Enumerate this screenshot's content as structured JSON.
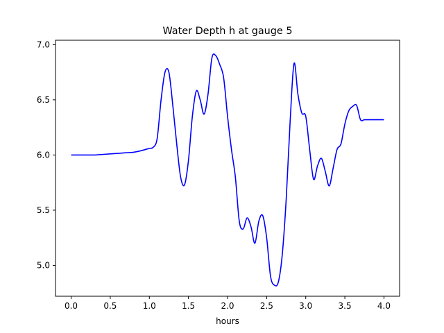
{
  "chart_data": {
    "type": "line",
    "title": "Water Depth h at gauge 5",
    "xlabel": "hours",
    "ylabel": "",
    "xlim": [
      -0.2,
      4.2
    ],
    "ylim": [
      4.72,
      7.04
    ],
    "xticks": [
      0.0,
      0.5,
      1.0,
      1.5,
      2.0,
      2.5,
      3.0,
      3.5,
      4.0
    ],
    "xtick_labels": [
      "0.0",
      "0.5",
      "1.0",
      "1.5",
      "2.0",
      "2.5",
      "3.0",
      "3.5",
      "4.0"
    ],
    "yticks": [
      5.0,
      5.5,
      6.0,
      6.5,
      7.0
    ],
    "ytick_labels": [
      "5.0",
      "5.5",
      "6.0",
      "6.5",
      "7.0"
    ],
    "grid": false,
    "series": [
      {
        "color": "#0000ff",
        "x": [
          0.0,
          0.1,
          0.2,
          0.3,
          0.4,
          0.5,
          0.6,
          0.7,
          0.8,
          0.9,
          1.0,
          1.05,
          1.1,
          1.15,
          1.2,
          1.25,
          1.3,
          1.35,
          1.4,
          1.45,
          1.5,
          1.55,
          1.6,
          1.65,
          1.7,
          1.75,
          1.8,
          1.85,
          1.9,
          1.95,
          2.0,
          2.05,
          2.1,
          2.15,
          2.2,
          2.25,
          2.3,
          2.35,
          2.4,
          2.45,
          2.5,
          2.55,
          2.6,
          2.65,
          2.7,
          2.75,
          2.8,
          2.85,
          2.9,
          2.95,
          3.0,
          3.05,
          3.1,
          3.15,
          3.2,
          3.25,
          3.3,
          3.35,
          3.4,
          3.45,
          3.5,
          3.55,
          3.6,
          3.65,
          3.7,
          3.75,
          3.8,
          3.85,
          3.9,
          3.95,
          4.0
        ],
        "y": [
          6.0,
          6.0,
          6.0,
          6.0,
          6.005,
          6.01,
          6.015,
          6.02,
          6.025,
          6.04,
          6.06,
          6.07,
          6.15,
          6.5,
          6.75,
          6.75,
          6.45,
          6.1,
          5.8,
          5.73,
          5.95,
          6.35,
          6.58,
          6.5,
          6.37,
          6.55,
          6.88,
          6.9,
          6.82,
          6.7,
          6.35,
          6.05,
          5.8,
          5.4,
          5.33,
          5.43,
          5.35,
          5.2,
          5.4,
          5.45,
          5.25,
          4.9,
          4.82,
          4.85,
          5.1,
          5.6,
          6.3,
          6.83,
          6.55,
          6.38,
          6.35,
          6.05,
          5.78,
          5.9,
          5.97,
          5.85,
          5.72,
          5.88,
          6.05,
          6.1,
          6.28,
          6.4,
          6.44,
          6.45,
          6.32,
          6.32,
          6.32,
          6.32,
          6.32,
          6.32,
          6.32
        ]
      }
    ]
  }
}
